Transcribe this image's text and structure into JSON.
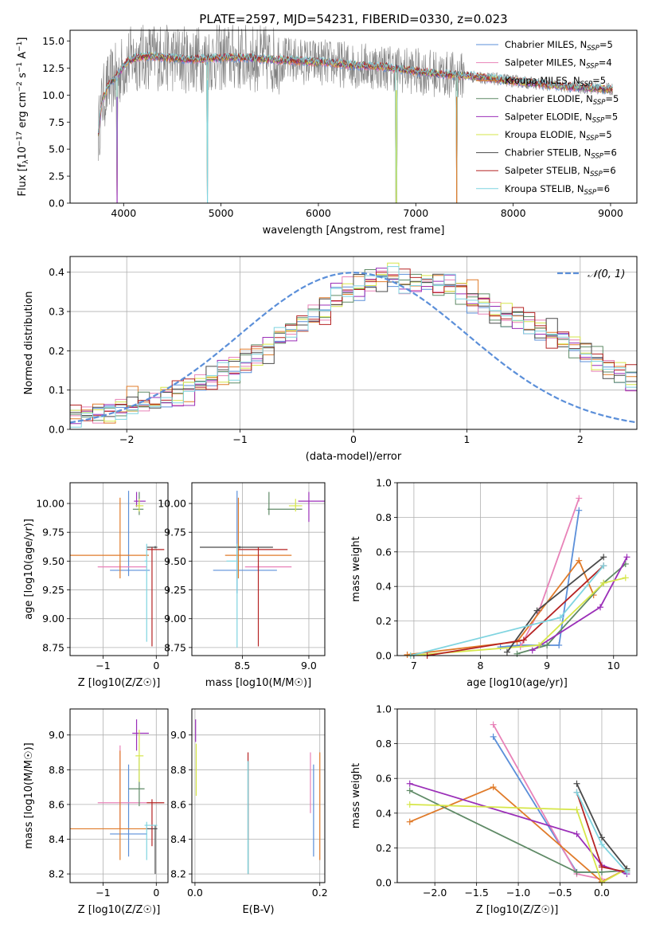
{
  "colors": {
    "chabrier_miles": "#5b8fd9",
    "salpeter_miles": "#e882b8",
    "kroupa_miles": "#e07b2a",
    "chabrier_elodie": "#5f8a66",
    "salpeter_elodie": "#9b2fb8",
    "kroupa_elodie": "#d6e64a",
    "chabrier_stelib": "#4a4a4a",
    "salpeter_stelib": "#b52323",
    "kroupa_stelib": "#7fd4e0",
    "data_gray": "#808080",
    "normal_curve": "#5b8fd9"
  },
  "chart_data": [
    {
      "id": "spectrum",
      "type": "line",
      "title": "PLATE=2597, MJD=54231, FIBERID=0330, z=0.023",
      "xlabel": "wavelength [Angstrom, rest frame]",
      "ylabel": "Flux [fλ10−17 erg cm−2 s−1 A−1]",
      "xlim": [
        3450,
        9270
      ],
      "ylim": [
        0,
        16
      ],
      "xticks": [
        "4000",
        "5000",
        "6000",
        "7000",
        "8000",
        "9000"
      ],
      "yticks": [
        "0.0",
        "2.5",
        "5.0",
        "7.5",
        "10.0",
        "12.5",
        "15.0"
      ],
      "grid": false,
      "legend_position": "top-right",
      "legend": [
        "Chabrier MILES, NSSP=5",
        "Salpeter MILES, NSSP=4",
        "Kroupa MILES, NSSP=5",
        "Chabrier ELODIE, NSSP=5",
        "Salpeter ELODIE, NSSP=5",
        "Kroupa ELODIE, NSSP=5",
        "Chabrier STELIB, NSSP=6",
        "Salpeter STELIB, NSSP=6",
        "Kroupa STELIB, NSSP=6"
      ],
      "model_continuum": {
        "x": [
          3740,
          3780,
          3850,
          3950,
          4050,
          4150,
          4300,
          4500,
          4700,
          4900,
          5100,
          5300,
          5500,
          5700,
          5900,
          6100,
          6300,
          6500,
          6700,
          6900,
          7100,
          7300,
          7500,
          7700,
          7900,
          8100,
          8300,
          8500,
          8700,
          8900,
          9020
        ],
        "y": [
          6.5,
          9.5,
          11.0,
          12.0,
          13.2,
          13.5,
          13.6,
          13.4,
          13.3,
          13.4,
          13.5,
          13.4,
          13.3,
          13.2,
          13.1,
          13.0,
          12.8,
          12.7,
          12.6,
          12.3,
          12.1,
          11.9,
          11.8,
          11.6,
          11.4,
          11.2,
          11.0,
          10.8,
          10.7,
          10.6,
          10.5
        ]
      },
      "absorption_dips": [
        {
          "x": 3933,
          "y": 0.0
        },
        {
          "x": 4861,
          "y": 0.0
        },
        {
          "x": 6800,
          "y": 0.0
        },
        {
          "x": 7420,
          "y": 0.0
        }
      ]
    },
    {
      "id": "residual-histogram",
      "type": "line",
      "xlabel": "(data-model)/error",
      "ylabel": "Normed distribution",
      "xlim": [
        -2.5,
        2.5
      ],
      "ylim": [
        0,
        0.44
      ],
      "xticks": [
        "−2",
        "−1",
        "0",
        "1",
        "2"
      ],
      "yticks": [
        "0.0",
        "0.1",
        "0.2",
        "0.3",
        "0.4"
      ],
      "grid": true,
      "legend_position": "top-right",
      "legend": [
        "𝒩(0, 1)"
      ],
      "bin_width": 0.1,
      "bin_start": -2.5,
      "base_profile": [
        0.03,
        0.035,
        0.04,
        0.045,
        0.05,
        0.055,
        0.06,
        0.065,
        0.075,
        0.085,
        0.095,
        0.11,
        0.125,
        0.14,
        0.15,
        0.165,
        0.185,
        0.2,
        0.225,
        0.24,
        0.26,
        0.285,
        0.3,
        0.33,
        0.35,
        0.36,
        0.37,
        0.38,
        0.38,
        0.37,
        0.365,
        0.37,
        0.36,
        0.36,
        0.35,
        0.33,
        0.32,
        0.29,
        0.28,
        0.28,
        0.265,
        0.25,
        0.24,
        0.225,
        0.205,
        0.19,
        0.17,
        0.155,
        0.14,
        0.12
      ],
      "series_offsets": [
        [
          0.01,
          -0.01,
          0.0,
          0.02,
          0.01,
          -0.02,
          0.0,
          0.01,
          -0.01,
          0.02
        ],
        [
          0.0,
          0.02,
          -0.01,
          0.01,
          0.03,
          0.0,
          -0.02,
          0.02,
          0.01,
          -0.01
        ],
        [
          -0.01,
          0.0,
          0.02,
          -0.02,
          0.0,
          0.04,
          0.01,
          -0.01,
          0.02,
          0.0
        ],
        [
          0.02,
          0.01,
          -0.01,
          0.0,
          -0.02,
          0.01,
          0.03,
          0.0,
          -0.01,
          0.02
        ],
        [
          -0.02,
          0.0,
          0.01,
          0.03,
          0.0,
          -0.01,
          0.0,
          0.02,
          0.0,
          -0.02
        ],
        [
          0.01,
          0.02,
          0.0,
          -0.01,
          0.02,
          0.0,
          -0.01,
          0.01,
          0.03,
          0.0
        ],
        [
          0.0,
          -0.01,
          0.03,
          0.0,
          0.01,
          0.02,
          0.0,
          -0.02,
          0.01,
          0.01
        ],
        [
          0.02,
          0.0,
          -0.02,
          0.01,
          0.0,
          -0.01,
          0.02,
          0.01,
          0.0,
          0.03
        ],
        [
          -0.01,
          0.01,
          0.0,
          0.02,
          -0.01,
          0.0,
          0.01,
          0.0,
          0.02,
          -0.01
        ]
      ],
      "normal_pdf": {
        "mean": 0,
        "sigma": 1
      }
    },
    {
      "id": "age-vs-metallicity",
      "type": "scatter",
      "xlabel": "Z [log10(Z/Z☉)]",
      "ylabel": "age  [log10(age/yr)]",
      "xlim": [
        -1.62,
        0.22
      ],
      "ylim": [
        8.68,
        10.18
      ],
      "xticks": [
        "−1",
        "0"
      ],
      "yticks": [
        "8.75",
        "9.00",
        "9.25",
        "9.50",
        "9.75",
        "10.00"
      ],
      "grid": true,
      "points": [
        {
          "s": 0,
          "x": -0.52,
          "y": 9.42,
          "xerr": [
            0.35,
            0.4
          ],
          "yerr": [
            0.05,
            0.69
          ]
        },
        {
          "s": 1,
          "x": -0.68,
          "y": 9.45,
          "xerr": [
            0.42,
            0.5
          ],
          "yerr": [
            0.02,
            0.02
          ]
        },
        {
          "s": 2,
          "x": -0.68,
          "y": 9.55,
          "xerr": [
            0.94,
            0.54
          ],
          "yerr": [
            0.2,
            0.5
          ]
        },
        {
          "s": 3,
          "x": -0.32,
          "y": 9.95,
          "xerr": [
            0.12,
            0.08
          ],
          "yerr": [
            0.05,
            0.15
          ]
        },
        {
          "s": 4,
          "x": -0.37,
          "y": 10.02,
          "xerr": [
            0.05,
            0.17
          ],
          "yerr": [
            0.05,
            0.08
          ]
        },
        {
          "s": 5,
          "x": -0.32,
          "y": 9.98,
          "xerr": [
            0.07,
            0.08
          ],
          "yerr": [
            0.05,
            0.06
          ]
        },
        {
          "s": 6,
          "x": -0.02,
          "y": 9.62,
          "xerr": [
            0.16,
            0.04
          ],
          "yerr": [
            0.01,
            0.01
          ]
        },
        {
          "s": 7,
          "x": -0.08,
          "y": 9.6,
          "xerr": [
            0.1,
            0.23
          ],
          "yerr": [
            0.84,
            0.02
          ]
        },
        {
          "s": 8,
          "x": -0.18,
          "y": 9.5,
          "xerr": [
            0.04,
            0.0
          ],
          "yerr": [
            0.7,
            0.15
          ]
        }
      ]
    },
    {
      "id": "age-vs-mass",
      "type": "scatter",
      "xlabel": "mass [log10(M/M☉)]",
      "ylabel": "",
      "xlim": [
        8.12,
        9.12
      ],
      "ylim": [
        8.68,
        10.18
      ],
      "xticks": [
        "8.5",
        "9.0"
      ],
      "yticks": [
        "8.75",
        "9.00",
        "9.25",
        "9.50",
        "9.75",
        "10.00"
      ],
      "grid": true,
      "points": [
        {
          "s": 0,
          "x": 8.46,
          "y": 9.42,
          "xerr": [
            0.18,
            0.3
          ],
          "yerr": [
            0.2,
            0.69
          ]
        },
        {
          "s": 1,
          "x": 8.62,
          "y": 9.45,
          "xerr": [
            0.1,
            0.25
          ],
          "yerr": [
            0.02,
            0.02
          ]
        },
        {
          "s": 2,
          "x": 8.47,
          "y": 9.55,
          "xerr": [
            0.1,
            0.4
          ],
          "yerr": [
            0.2,
            0.5
          ]
        },
        {
          "s": 3,
          "x": 8.7,
          "y": 9.95,
          "xerr": [
            0.01,
            0.25
          ],
          "yerr": [
            0.05,
            0.15
          ]
        },
        {
          "s": 4,
          "x": 9.0,
          "y": 10.02,
          "xerr": [
            0.08,
            0.12
          ],
          "yerr": [
            0.18,
            0.08
          ]
        },
        {
          "s": 5,
          "x": 8.9,
          "y": 9.98,
          "xerr": [
            0.05,
            0.05
          ],
          "yerr": [
            0.05,
            0.06
          ]
        },
        {
          "s": 6,
          "x": 8.48,
          "y": 9.62,
          "xerr": [
            0.3,
            0.25
          ],
          "yerr": [
            0.01,
            0.01
          ]
        },
        {
          "s": 7,
          "x": 8.62,
          "y": 9.6,
          "xerr": [
            0.15,
            0.22
          ],
          "yerr": [
            0.84,
            0.02
          ]
        },
        {
          "s": 8,
          "x": 8.46,
          "y": 9.5,
          "xerr": [
            0.08,
            0.0
          ],
          "yerr": [
            0.75,
            0.15
          ]
        }
      ]
    },
    {
      "id": "mass-weight-vs-age",
      "type": "line",
      "xlabel": "age  [log10(age/yr)]",
      "ylabel": "mass weight",
      "xlim": [
        6.75,
        10.35
      ],
      "ylim": [
        0,
        1.0
      ],
      "xticks": [
        "7",
        "8",
        "9",
        "10"
      ],
      "yticks": [
        "0.0",
        "0.2",
        "0.4",
        "0.6",
        "0.8",
        "1.0"
      ],
      "grid": true,
      "series": [
        {
          "s": 0,
          "x": [
            8.3,
            8.6,
            9.18,
            9.48
          ],
          "y": [
            0.05,
            0.06,
            0.06,
            0.84
          ]
        },
        {
          "s": 1,
          "x": [
            8.6,
            8.88,
            9.48
          ],
          "y": [
            0.05,
            0.26,
            0.91
          ]
        },
        {
          "s": 2,
          "x": [
            6.9,
            8.55,
            9.48,
            9.7
          ],
          "y": [
            0.005,
            0.08,
            0.55,
            0.35
          ]
        },
        {
          "s": 3,
          "x": [
            8.55,
            9.0,
            9.85,
            10.18
          ],
          "y": [
            0.01,
            0.06,
            0.42,
            0.53
          ]
        },
        {
          "s": 4,
          "x": [
            8.78,
            9.8,
            10.2
          ],
          "y": [
            0.03,
            0.28,
            0.57
          ]
        },
        {
          "s": 5,
          "x": [
            6.95,
            8.88,
            9.85,
            10.18
          ],
          "y": [
            0.0,
            0.06,
            0.42,
            0.45
          ]
        },
        {
          "s": 6,
          "x": [
            8.4,
            8.85,
            9.85
          ],
          "y": [
            0.02,
            0.26,
            0.57
          ]
        },
        {
          "s": 7,
          "x": [
            7.2,
            8.65,
            9.85
          ],
          "y": [
            0.0,
            0.09,
            0.52
          ]
        },
        {
          "s": 8,
          "x": [
            6.95,
            9.2,
            9.85
          ],
          "y": [
            0.0,
            0.22,
            0.52
          ]
        }
      ]
    },
    {
      "id": "mass-vs-metallicity",
      "type": "scatter",
      "xlabel": "Z [log10(Z/Z☉)]",
      "ylabel": "mass [log10(M/M☉)]",
      "xlim": [
        -1.62,
        0.22
      ],
      "ylim": [
        8.15,
        9.15
      ],
      "xticks": [
        "−1",
        "0"
      ],
      "yticks": [
        "8.2",
        "8.4",
        "8.6",
        "8.8",
        "9.0"
      ],
      "grid": true,
      "points": [
        {
          "s": 0,
          "x": -0.52,
          "y": 8.43,
          "xerr": [
            0.35,
            0.35
          ],
          "yerr": [
            0.13,
            0.4
          ]
        },
        {
          "s": 1,
          "x": -0.68,
          "y": 8.61,
          "xerr": [
            0.42,
            0.5
          ],
          "yerr": [
            0.15,
            0.33
          ]
        },
        {
          "s": 2,
          "x": -0.68,
          "y": 8.46,
          "xerr": [
            0.94,
            0.54
          ],
          "yerr": [
            0.18,
            0.45
          ]
        },
        {
          "s": 3,
          "x": -0.32,
          "y": 8.69,
          "xerr": [
            0.2,
            0.1
          ],
          "yerr": [
            0.1,
            0.18
          ]
        },
        {
          "s": 4,
          "x": -0.37,
          "y": 9.01,
          "xerr": [
            0.08,
            0.23
          ],
          "yerr": [
            0.1,
            0.08
          ]
        },
        {
          "s": 5,
          "x": -0.32,
          "y": 8.88,
          "xerr": [
            0.07,
            0.08
          ],
          "yerr": [
            0.15,
            0.15
          ]
        },
        {
          "s": 6,
          "x": -0.02,
          "y": 8.46,
          "xerr": [
            0.16,
            0.04
          ],
          "yerr": [
            0.26,
            0.02
          ]
        },
        {
          "s": 7,
          "x": -0.08,
          "y": 8.61,
          "xerr": [
            0.1,
            0.23
          ],
          "yerr": [
            0.25,
            0.02
          ]
        },
        {
          "s": 8,
          "x": -0.18,
          "y": 8.48,
          "xerr": [
            0.04,
            0.2
          ],
          "yerr": [
            0.2,
            0.02
          ]
        }
      ]
    },
    {
      "id": "mass-vs-extinction",
      "type": "scatter",
      "xlabel": "E(B-V)",
      "ylabel": "",
      "xlim": [
        -0.005,
        0.208
      ],
      "ylim": [
        8.15,
        9.15
      ],
      "xticks": [
        "0.0",
        "0.2"
      ],
      "yticks": [
        "8.2",
        "8.4",
        "8.6",
        "8.8",
        "9.0"
      ],
      "grid": true,
      "points": [
        {
          "s": 0,
          "x": 0.19,
          "y": 8.6,
          "yerr": [
            0.3,
            0.23
          ]
        },
        {
          "s": 1,
          "x": 0.185,
          "y": 8.75,
          "yerr": [
            0.2,
            0.15
          ]
        },
        {
          "s": 2,
          "x": 0.2,
          "y": 8.6,
          "yerr": [
            0.32,
            0.3
          ]
        },
        {
          "s": 3,
          "x": 0.085,
          "y": 8.55,
          "yerr": [
            0.35,
            0.3
          ]
        },
        {
          "s": 4,
          "x": 0.001,
          "y": 9.02,
          "yerr": [
            0.06,
            0.07
          ]
        },
        {
          "s": 5,
          "x": 0.002,
          "y": 8.8,
          "yerr": [
            0.15,
            0.15
          ]
        },
        {
          "s": 6,
          "x": 0.085,
          "y": 8.5,
          "yerr": [
            0.3,
            0.35
          ]
        },
        {
          "s": 7,
          "x": 0.085,
          "y": 8.7,
          "yerr": [
            0.3,
            0.2
          ]
        },
        {
          "s": 8,
          "x": 0.085,
          "y": 8.55,
          "yerr": [
            0.35,
            0.3
          ]
        }
      ]
    },
    {
      "id": "mass-weight-vs-metallicity",
      "type": "line",
      "xlabel": "Z [log10(Z/Z☉)]",
      "ylabel": "mass weight",
      "xlim": [
        -2.45,
        0.42
      ],
      "ylim": [
        0,
        1.0
      ],
      "xticks": [
        "−2.0",
        "−1.5",
        "−1.0",
        "−0.5",
        "0.0"
      ],
      "yticks": [
        "0.0",
        "0.2",
        "0.4",
        "0.6",
        "0.8",
        "1.0"
      ],
      "grid": true,
      "series": [
        {
          "s": 0,
          "x": [
            -1.3,
            -0.3,
            0.0
          ],
          "y": [
            0.84,
            0.06,
            0.06
          ]
        },
        {
          "s": 1,
          "x": [
            -1.3,
            -0.3,
            0.0
          ],
          "y": [
            0.91,
            0.05,
            0.02
          ]
        },
        {
          "s": 2,
          "x": [
            -2.3,
            -1.3,
            0.0,
            0.3
          ],
          "y": [
            0.35,
            0.55,
            0.005,
            0.08
          ]
        },
        {
          "s": 3,
          "x": [
            -2.3,
            -0.3,
            0.0,
            0.3
          ],
          "y": [
            0.53,
            0.06,
            0.06,
            0.07
          ]
        },
        {
          "s": 4,
          "x": [
            -2.3,
            -0.3,
            0.0,
            0.3
          ],
          "y": [
            0.57,
            0.28,
            0.1,
            0.05
          ]
        },
        {
          "s": 5,
          "x": [
            -2.3,
            -0.3,
            0.0,
            0.3
          ],
          "y": [
            0.45,
            0.42,
            0.0,
            0.08
          ]
        },
        {
          "s": 6,
          "x": [
            -0.3,
            0.0,
            0.3
          ],
          "y": [
            0.57,
            0.26,
            0.08
          ]
        },
        {
          "s": 7,
          "x": [
            -0.3,
            0.0,
            0.3
          ],
          "y": [
            0.52,
            0.09,
            0.06
          ]
        },
        {
          "s": 8,
          "x": [
            -0.3,
            0.0,
            0.3
          ],
          "y": [
            0.52,
            0.22,
            0.06
          ]
        }
      ]
    }
  ]
}
